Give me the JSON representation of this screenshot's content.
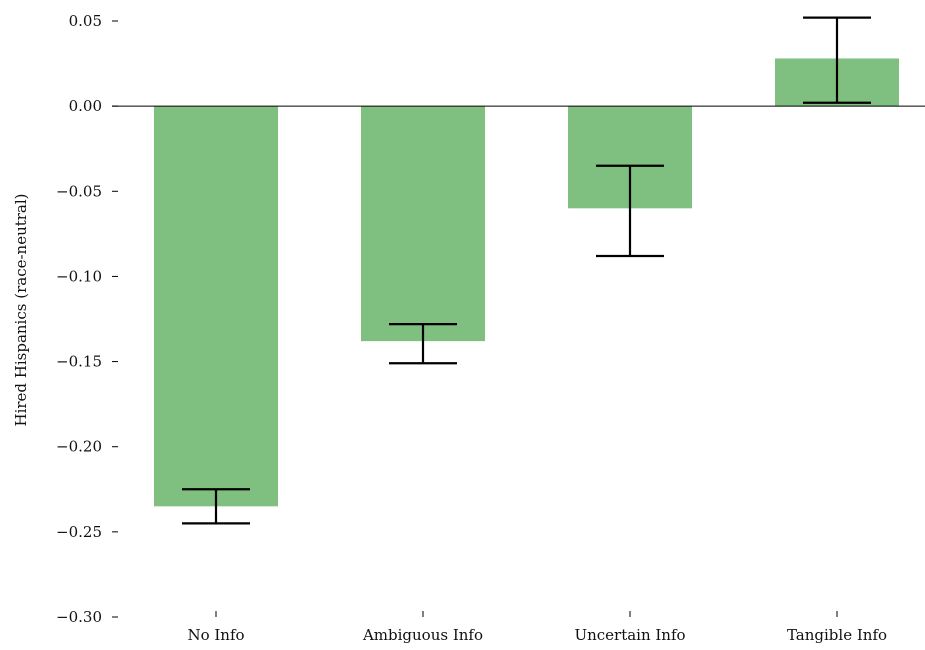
{
  "chart_data": {
    "type": "bar",
    "title": "",
    "xlabel": "",
    "ylabel": "Hired Hispanics (race-neutral)",
    "categories": [
      "No Info",
      "Ambiguous Info",
      "Uncertain Info",
      "Tangible Info"
    ],
    "values": [
      -0.235,
      -0.138,
      -0.06,
      0.028
    ],
    "error_low": [
      -0.245,
      -0.151,
      -0.088,
      0.002
    ],
    "error_high": [
      -0.225,
      -0.128,
      -0.035,
      0.052
    ],
    "ylim": [
      -0.3,
      0.06
    ],
    "yticks": [
      "0.05",
      "0.00",
      "−0.05",
      "−0.10",
      "−0.15",
      "−0.20",
      "−0.25",
      "−0.30"
    ],
    "ytick_values": [
      0.05,
      0.0,
      -0.05,
      -0.1,
      -0.15,
      -0.2,
      -0.25,
      -0.3
    ],
    "bar_color": "#7fc080",
    "error_color": "#000000",
    "zero_line": true,
    "grid": false,
    "legend": "none"
  }
}
